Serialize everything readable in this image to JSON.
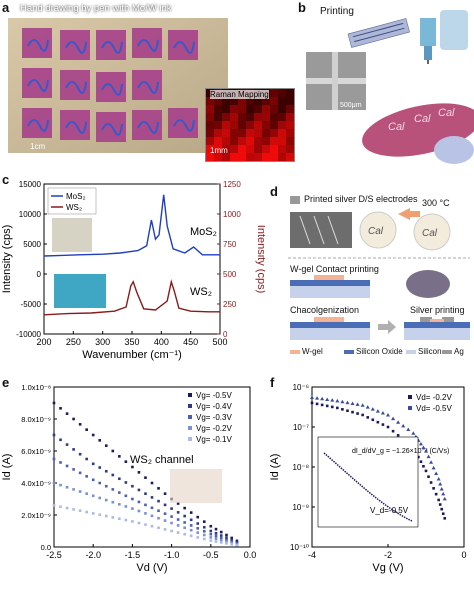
{
  "panel_a": {
    "letter": "a",
    "title": "Hand drawing by pen with Mo/W ink",
    "scale_left": "1cm",
    "inset_title": "Raman Mapping",
    "inset_scale": "1mm"
  },
  "panel_b": {
    "letter": "b",
    "title": "Printing",
    "sem_scale": "500μm"
  },
  "panel_c": {
    "letter": "c",
    "legend": [
      "MoS₂",
      "WS₂"
    ],
    "label_top": "MoS₂",
    "label_bottom": "WS₂"
  },
  "panel_d": {
    "letter": "d",
    "step1": "Printed silver D/S electrodes",
    "temp": "300 °C",
    "step2": "W-gel Contact printing",
    "step3": "Chacolgenization",
    "step4": "Silver printing",
    "legend": [
      "W-gel",
      "Silicon Oxide",
      "Silicon",
      "Ag"
    ]
  },
  "panel_e": {
    "letter": "e",
    "annotation": "WS₂ channel"
  },
  "panel_f": {
    "letter": "f",
    "inset_eq": "dI_d/dV_g = −1.26×10⁻³ (C/Vs)",
    "inset_vd": "V_d=-0.5V"
  },
  "chart_data": [
    {
      "type": "line",
      "panel": "c",
      "xlabel": "Wavenumber (cm⁻¹)",
      "ylabel": "Intensity (cps)",
      "y2label": "Intensity (cps)",
      "xlim": [
        200,
        500
      ],
      "ylim": [
        -10000,
        15000
      ],
      "y2lim": [
        0,
        1250
      ],
      "xticks": [
        "200",
        "250",
        "300",
        "350",
        "400",
        "450",
        "500"
      ],
      "yticks": [
        "-10000",
        "-5000",
        "0",
        "5000",
        "10000",
        "15000"
      ],
      "y2ticks": [
        "0",
        "250",
        "500",
        "750",
        "1000",
        "1250"
      ],
      "series": [
        {
          "name": "MoS₂",
          "color": "#1f3fbf",
          "x": [
            200,
            230,
            260,
            300,
            330,
            360,
            375,
            383,
            390,
            396,
            404,
            410,
            420,
            440,
            455,
            470,
            500
          ],
          "y": [
            3000,
            3100,
            3200,
            3300,
            3500,
            3900,
            4700,
            9000,
            5800,
            6500,
            13200,
            8000,
            4200,
            3500,
            4500,
            3200,
            3200
          ]
        },
        {
          "name": "WS₂",
          "color": "#8b1a1a",
          "x": [
            200,
            240,
            280,
            320,
            340,
            348,
            352,
            358,
            370,
            390,
            410,
            417,
            422,
            430,
            450,
            480,
            500
          ],
          "y": [
            -6800,
            -6600,
            -6500,
            -6200,
            -5500,
            -2000,
            -1300,
            -3000,
            -5800,
            -6000,
            -4500,
            -1300,
            -2800,
            -5700,
            -6200,
            -6300,
            -6300
          ]
        }
      ]
    },
    {
      "type": "scatter",
      "panel": "e",
      "xlabel": "Vd (V)",
      "ylabel": "Id (A)",
      "xlim": [
        -2.5,
        0
      ],
      "ylim": [
        0,
        1e-08
      ],
      "xticks": [
        "-2.5",
        "-2.0",
        "-1.5",
        "-1.0",
        "-0.5",
        "0.0"
      ],
      "yticks": [
        "0.0",
        "2.0x10⁻⁹",
        "4.0x10⁻⁹",
        "6.0x10⁻⁹",
        "8.0x10⁻⁹",
        "1.0x10⁻⁸"
      ],
      "series": [
        {
          "name": "Vg= -0.5V",
          "color": "#1a1a5e",
          "x": [
            -2.5,
            -2.0,
            -1.5,
            -1.0,
            -0.5,
            -0.1
          ],
          "y": [
            9e-09,
            7e-09,
            5e-09,
            3e-09,
            1.3e-09,
            2e-10
          ]
        },
        {
          "name": "Vg= -0.4V",
          "color": "#2e3a86",
          "x": [
            -2.5,
            -2.0,
            -1.5,
            -1.0,
            -0.5,
            -0.1
          ],
          "y": [
            7e-09,
            5.2e-09,
            3.8e-09,
            2.4e-09,
            1e-09,
            1.5e-10
          ]
        },
        {
          "name": "Vg= -0.3V",
          "color": "#4a5fb5",
          "x": [
            -2.5,
            -2.0,
            -1.5,
            -1.0,
            -0.5,
            -0.1
          ],
          "y": [
            5.5e-09,
            4.2e-09,
            3e-09,
            1.9e-09,
            8e-10,
            1e-10
          ]
        },
        {
          "name": "Vg= -0.2V",
          "color": "#7a8fd4",
          "x": [
            -2.5,
            -2.0,
            -1.5,
            -1.0,
            -0.5,
            -0.1
          ],
          "y": [
            4e-09,
            3.2e-09,
            2.4e-09,
            1.5e-09,
            6e-10,
            8e-11
          ]
        },
        {
          "name": "Vg= -0.1V",
          "color": "#aab8ea",
          "x": [
            -2.5,
            -2.0,
            -1.5,
            -1.0,
            -0.5,
            -0.1
          ],
          "y": [
            2.6e-09,
            2.1e-09,
            1.6e-09,
            1e-09,
            4e-10,
            5e-11
          ]
        }
      ]
    },
    {
      "type": "scatter",
      "panel": "f",
      "xlabel": "Vg (V)",
      "ylabel": "Id (A)",
      "scale": "log",
      "xlim": [
        -5,
        1
      ],
      "ylim": [
        1e-10,
        1e-06
      ],
      "xticks": [
        "-4",
        "-2",
        "0"
      ],
      "yticks": [
        "10⁻¹⁰",
        "10⁻⁹",
        "10⁻⁸",
        "10⁻⁷",
        "10⁻⁶"
      ],
      "series": [
        {
          "name": "Vd= -0.2V",
          "color": "#1a1a5e",
          "x": [
            -5,
            -4,
            -3,
            -2,
            -1,
            -0.5,
            0,
            0.3
          ],
          "y": [
            4e-07,
            3e-07,
            2e-07,
            1e-07,
            3e-08,
            8e-09,
            1.5e-09,
            4e-10
          ]
        },
        {
          "name": "Vd= -0.5V",
          "color": "#3a4aa0",
          "x": [
            -5,
            -4,
            -3,
            -2,
            -1,
            -0.5,
            0,
            0.3
          ],
          "y": [
            5.5e-07,
            4.5e-07,
            3.5e-07,
            2e-07,
            7e-08,
            2.5e-08,
            5e-09,
            1.2e-09
          ]
        }
      ]
    }
  ]
}
